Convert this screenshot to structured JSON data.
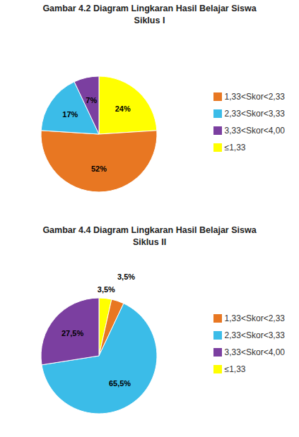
{
  "chart_data": [
    {
      "type": "pie",
      "title": "Gambar 4.2 Diagram Lingkaran Hasil Belajar Siswa\nSiklus I",
      "categories": [
        "≤1,33",
        "1,33<Skor<2,33",
        "2,33<Skor<3,33",
        "3,33<Skor<4,00"
      ],
      "values": [
        24,
        52,
        17,
        7
      ],
      "value_labels": [
        "24%",
        "52%",
        "17%",
        "7%"
      ],
      "colors": [
        "#FFFF00",
        "#E87722",
        "#3BBCE8",
        "#7B3FA0"
      ],
      "data_labels": true,
      "legend": "right"
    },
    {
      "type": "pie",
      "title": "Gambar 4.4 Diagram Lingkaran Hasil Belajar Siswa\nSiklus II",
      "categories": [
        "≤1,33",
        "1,33<Skor<2,33",
        "2,33<Skor<3,33",
        "3,33<Skor<4,00"
      ],
      "values": [
        3.5,
        3.5,
        65.5,
        27.5
      ],
      "value_labels": [
        "3,5%",
        "3,5%",
        "65,5%",
        "27,5%"
      ],
      "colors": [
        "#FFFF00",
        "#E87722",
        "#3BBCE8",
        "#7B3FA0"
      ],
      "data_labels": true,
      "legend": "right"
    }
  ]
}
